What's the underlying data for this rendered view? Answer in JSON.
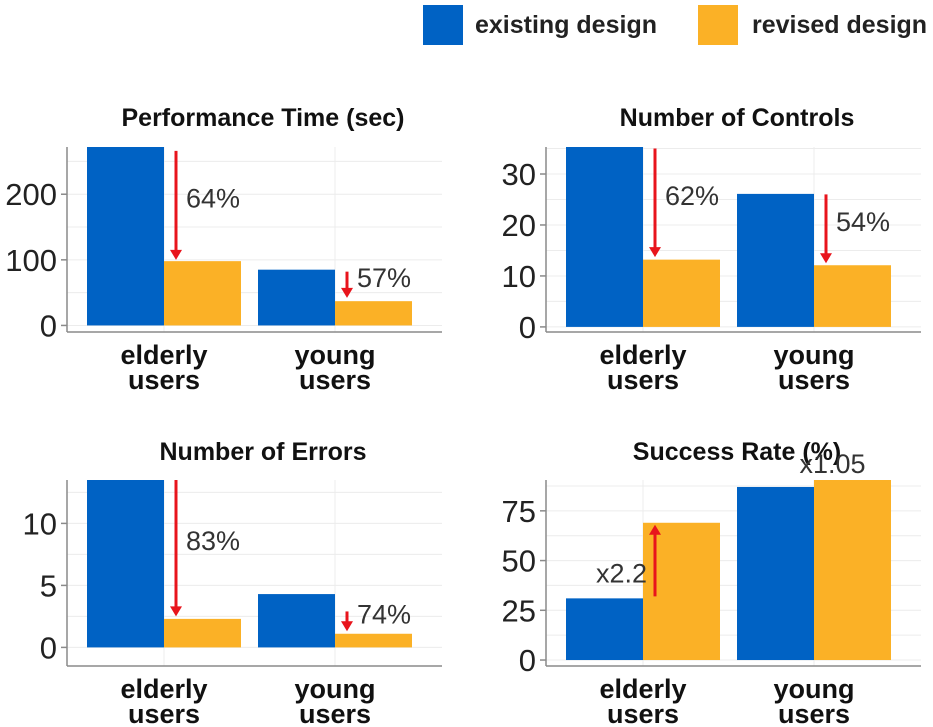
{
  "legend": {
    "placement": "top-right",
    "items": [
      {
        "label": "existing design",
        "color": "#0062c4"
      },
      {
        "label": "revised design",
        "color": "#fbb126"
      }
    ]
  },
  "colors": {
    "existing": "#0062c4",
    "revised": "#fbb126",
    "arrow": "#e8141c",
    "grid": "#ececec",
    "axis": "#8a8a8a"
  },
  "chart_data": [
    {
      "type": "bar",
      "title": "Performance Time (sec)",
      "categories": [
        "elderly users",
        "young users"
      ],
      "series": [
        {
          "name": "existing design",
          "values": [
            272,
            85
          ]
        },
        {
          "name": "revised design",
          "values": [
            98,
            37
          ]
        }
      ],
      "ylim": [
        -10,
        272
      ],
      "yticks": [
        0,
        100,
        200
      ],
      "grid": true,
      "annotations": [
        {
          "text": "64%",
          "category": 0,
          "direction": "down",
          "from": 266,
          "to": 100
        },
        {
          "text": "57%",
          "category": 1,
          "direction": "down",
          "from": 82,
          "to": 42
        }
      ]
    },
    {
      "type": "bar",
      "title": "Number of Controls",
      "categories": [
        "elderly users",
        "young users"
      ],
      "series": [
        {
          "name": "existing design",
          "values": [
            35.3,
            26.1
          ]
        },
        {
          "name": "revised design",
          "values": [
            13.2,
            12.1
          ]
        }
      ],
      "ylim": [
        -1,
        35.3
      ],
      "yticks": [
        0,
        10,
        20,
        30
      ],
      "grid": true,
      "annotations": [
        {
          "text": "62%",
          "category": 0,
          "direction": "down",
          "from": 35,
          "to": 13.7
        },
        {
          "text": "54%",
          "category": 1,
          "direction": "down",
          "from": 26,
          "to": 12.5
        }
      ]
    },
    {
      "type": "bar",
      "title": "Number of Errors",
      "categories": [
        "elderly users",
        "young users"
      ],
      "series": [
        {
          "name": "existing design",
          "values": [
            13.5,
            4.3
          ]
        },
        {
          "name": "revised design",
          "values": [
            2.3,
            1.1
          ]
        }
      ],
      "ylim": [
        -1.5,
        13.5
      ],
      "yticks": [
        0,
        5,
        10
      ],
      "grid": true,
      "annotations": [
        {
          "text": "83%",
          "category": 0,
          "direction": "down",
          "from": 13.5,
          "to": 2.5
        },
        {
          "text": "74%",
          "category": 1,
          "direction": "down",
          "from": 2.9,
          "to": 1.3
        }
      ]
    },
    {
      "type": "bar",
      "title": "Success Rate (%)",
      "categories": [
        "elderly users",
        "young users"
      ],
      "series": [
        {
          "name": "existing design",
          "values": [
            31,
            87
          ]
        },
        {
          "name": "revised design",
          "values": [
            69,
            90.5
          ]
        }
      ],
      "ylim": [
        -3,
        90.5
      ],
      "yticks": [
        0,
        25,
        50,
        75
      ],
      "grid": true,
      "annotations": [
        {
          "text": "x2.2",
          "category": 0,
          "direction": "up",
          "from": 32,
          "to": 68
        },
        {
          "text": "x1.05",
          "category": 1,
          "direction": "none"
        }
      ]
    }
  ]
}
